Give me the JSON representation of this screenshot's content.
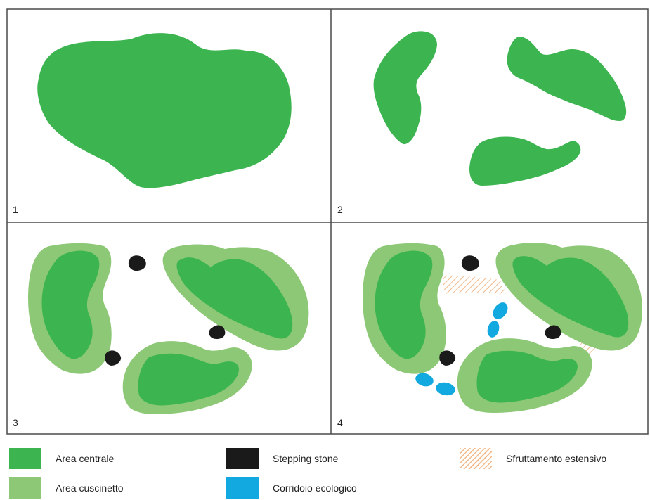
{
  "panels": [
    {
      "number": "1"
    },
    {
      "number": "2"
    },
    {
      "number": "3"
    },
    {
      "number": "4"
    }
  ],
  "legend": {
    "core_area": {
      "label": "Area centrale",
      "color": "#3cb550"
    },
    "buffer_area": {
      "label": "Area cuscinetto",
      "color": "#8cc875"
    },
    "stepping_stone": {
      "label": "Stepping stone",
      "color": "#1a1a1a"
    },
    "ecological_corridor": {
      "label": "Corridoio ecologico",
      "color": "#12a8e0"
    },
    "extensive_use": {
      "label": "Sfruttamento estensivo",
      "color": "#f2b98a"
    }
  }
}
